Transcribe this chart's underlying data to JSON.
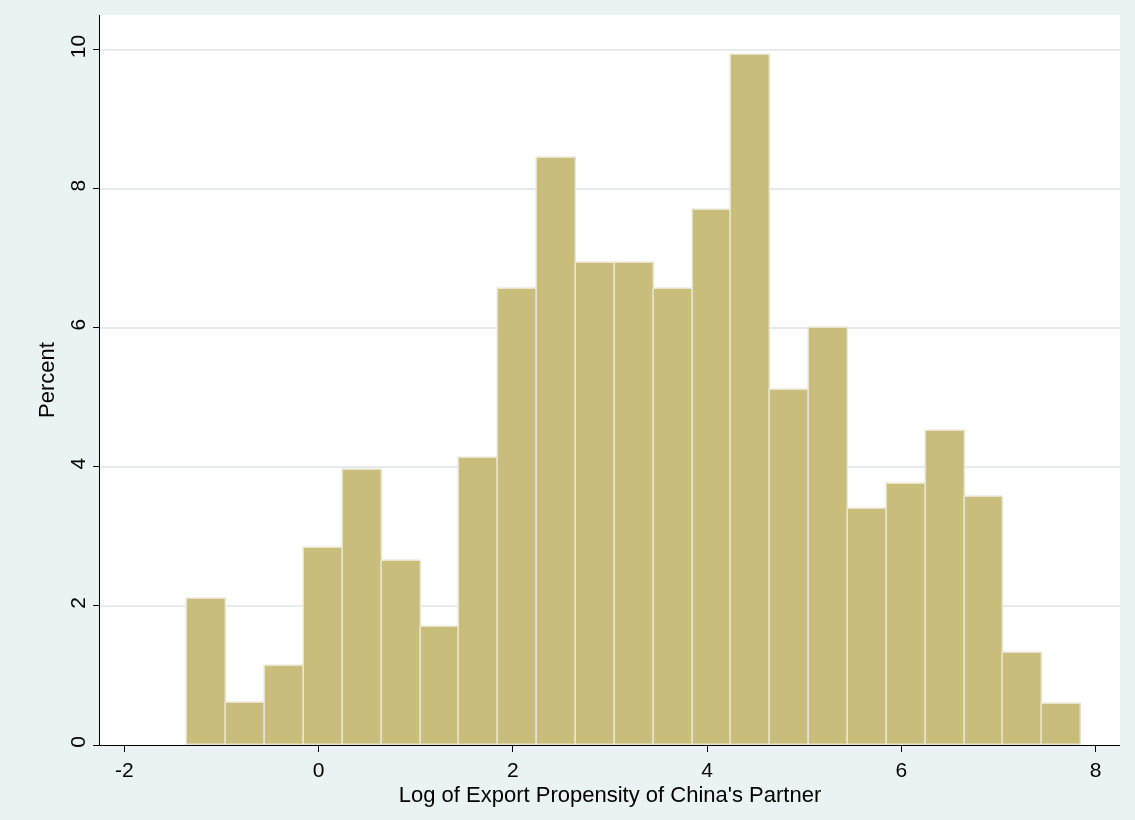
{
  "chart_data": {
    "type": "histogram",
    "xlabel": "Log of Export Propensity of China's Partner",
    "ylabel": "Percent",
    "bins": [
      -1.35,
      -0.95,
      -0.55,
      -0.15,
      0.25,
      0.65,
      1.05,
      1.45,
      1.85,
      2.25,
      2.65,
      3.05,
      3.45,
      3.85,
      4.25,
      4.65,
      5.05,
      5.45,
      5.85,
      6.25,
      6.65,
      7.05,
      7.45,
      7.85
    ],
    "values": [
      2.1,
      0.6,
      1.14,
      2.84,
      3.96,
      2.65,
      1.7,
      4.13,
      6.56,
      8.44,
      6.93,
      6.93,
      6.56,
      7.69,
      9.93,
      5.1,
      6.0,
      3.39,
      3.76,
      4.52,
      3.57,
      1.33,
      0.59
    ],
    "color": "#c9bd7b",
    "xlim": [
      -2.25,
      8.25
    ],
    "xticks": [
      -2,
      0,
      2,
      4,
      6,
      8
    ],
    "ylim": [
      0,
      10.5
    ],
    "yticks": [
      0,
      2,
      4,
      6,
      8,
      10
    ],
    "grid": "y"
  }
}
